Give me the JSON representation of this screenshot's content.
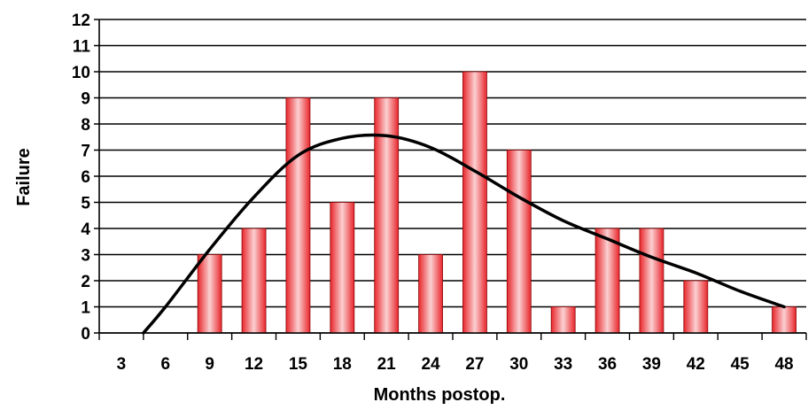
{
  "chart_data": {
    "type": "bar",
    "xlabel": "Months postop.",
    "ylabel": "Failure",
    "ylim": [
      0,
      12
    ],
    "yticks": [
      "0",
      "1",
      "2",
      "3",
      "4",
      "5",
      "6",
      "7",
      "8",
      "9",
      "10",
      "11",
      "12"
    ],
    "categories": [
      "3",
      "6",
      "9",
      "12",
      "15",
      "18",
      "21",
      "24",
      "27",
      "30",
      "33",
      "36",
      "39",
      "42",
      "45",
      "48"
    ],
    "values": [
      0,
      0,
      3,
      4,
      9,
      5,
      9,
      3,
      10,
      7,
      1,
      4,
      4,
      2,
      0,
      1
    ],
    "trend_curve": {
      "x": [
        4.5,
        6,
        9,
        12,
        15,
        18,
        21,
        24,
        27,
        30,
        33,
        36,
        39,
        42,
        45,
        48
      ],
      "y": [
        0,
        1.0,
        3.2,
        5.2,
        6.8,
        7.45,
        7.55,
        7.1,
        6.2,
        5.2,
        4.3,
        3.6,
        2.9,
        2.3,
        1.6,
        1.0
      ]
    },
    "grid": true,
    "bar_color": "#e8262b",
    "bar_highlight": "#fbd0d2",
    "curve_color": "#000000"
  }
}
